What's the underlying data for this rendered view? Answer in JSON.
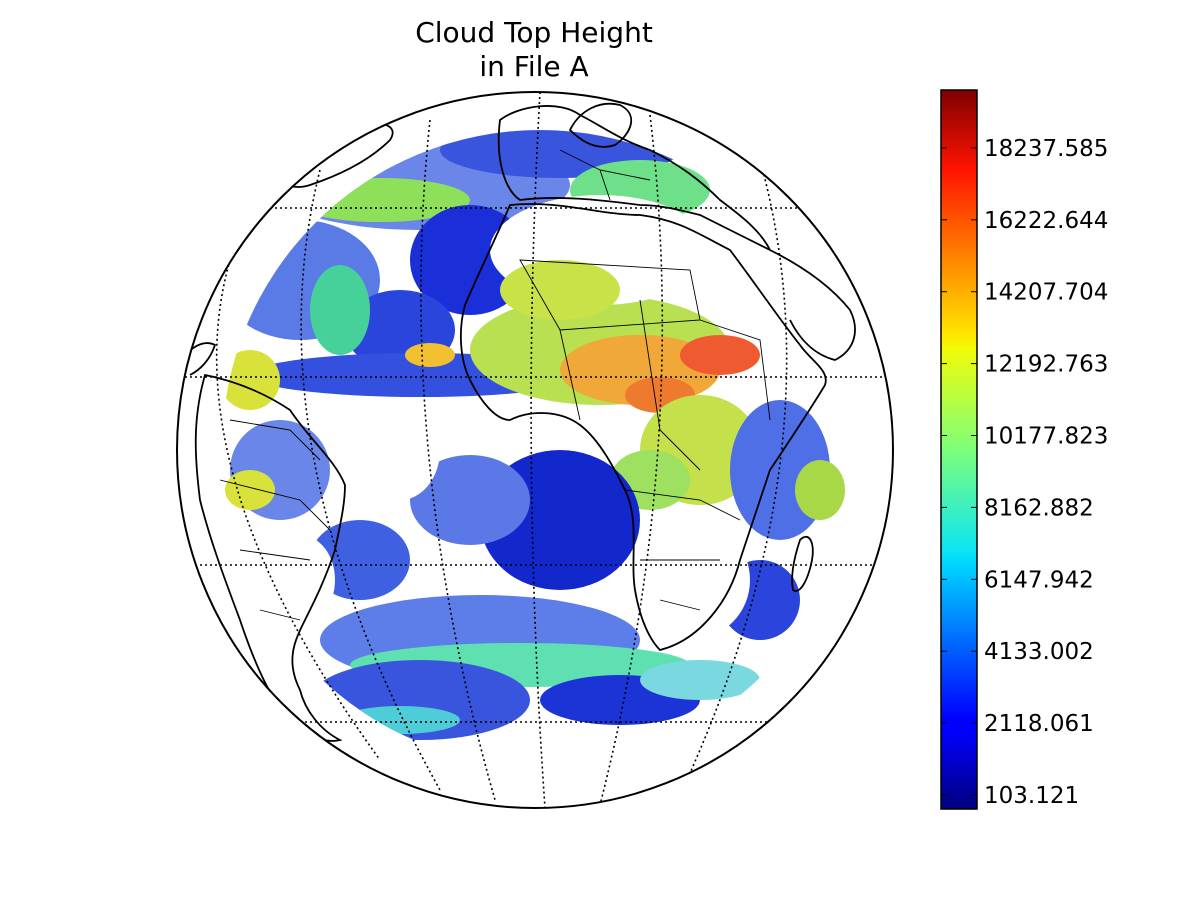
{
  "figure": {
    "title_line1": "Cloud Top Height",
    "title_line2": "in File A"
  },
  "map": {
    "projection": "orthographic",
    "graticule": "dotted",
    "coastlines": true,
    "country_borders": true,
    "visible_regions": [
      "South America",
      "Africa",
      "Europe",
      "Atlantic Ocean"
    ]
  },
  "colorbar": {
    "colormap": "jet",
    "orientation": "vertical",
    "placement": "right",
    "min": 103.121,
    "max": 20252.525,
    "ticks": [
      {
        "value": 103.121,
        "label": "103.121"
      },
      {
        "value": 2118.061,
        "label": "2118.061"
      },
      {
        "value": 4133.002,
        "label": "4133.002"
      },
      {
        "value": 6147.942,
        "label": "6147.942"
      },
      {
        "value": 8162.882,
        "label": "8162.882"
      },
      {
        "value": 10177.823,
        "label": "10177.823"
      },
      {
        "value": 12192.763,
        "label": "12192.763"
      },
      {
        "value": 14207.704,
        "label": "14207.704"
      },
      {
        "value": 16222.644,
        "label": "16222.644"
      },
      {
        "value": 18237.585,
        "label": "18237.585"
      }
    ]
  }
}
